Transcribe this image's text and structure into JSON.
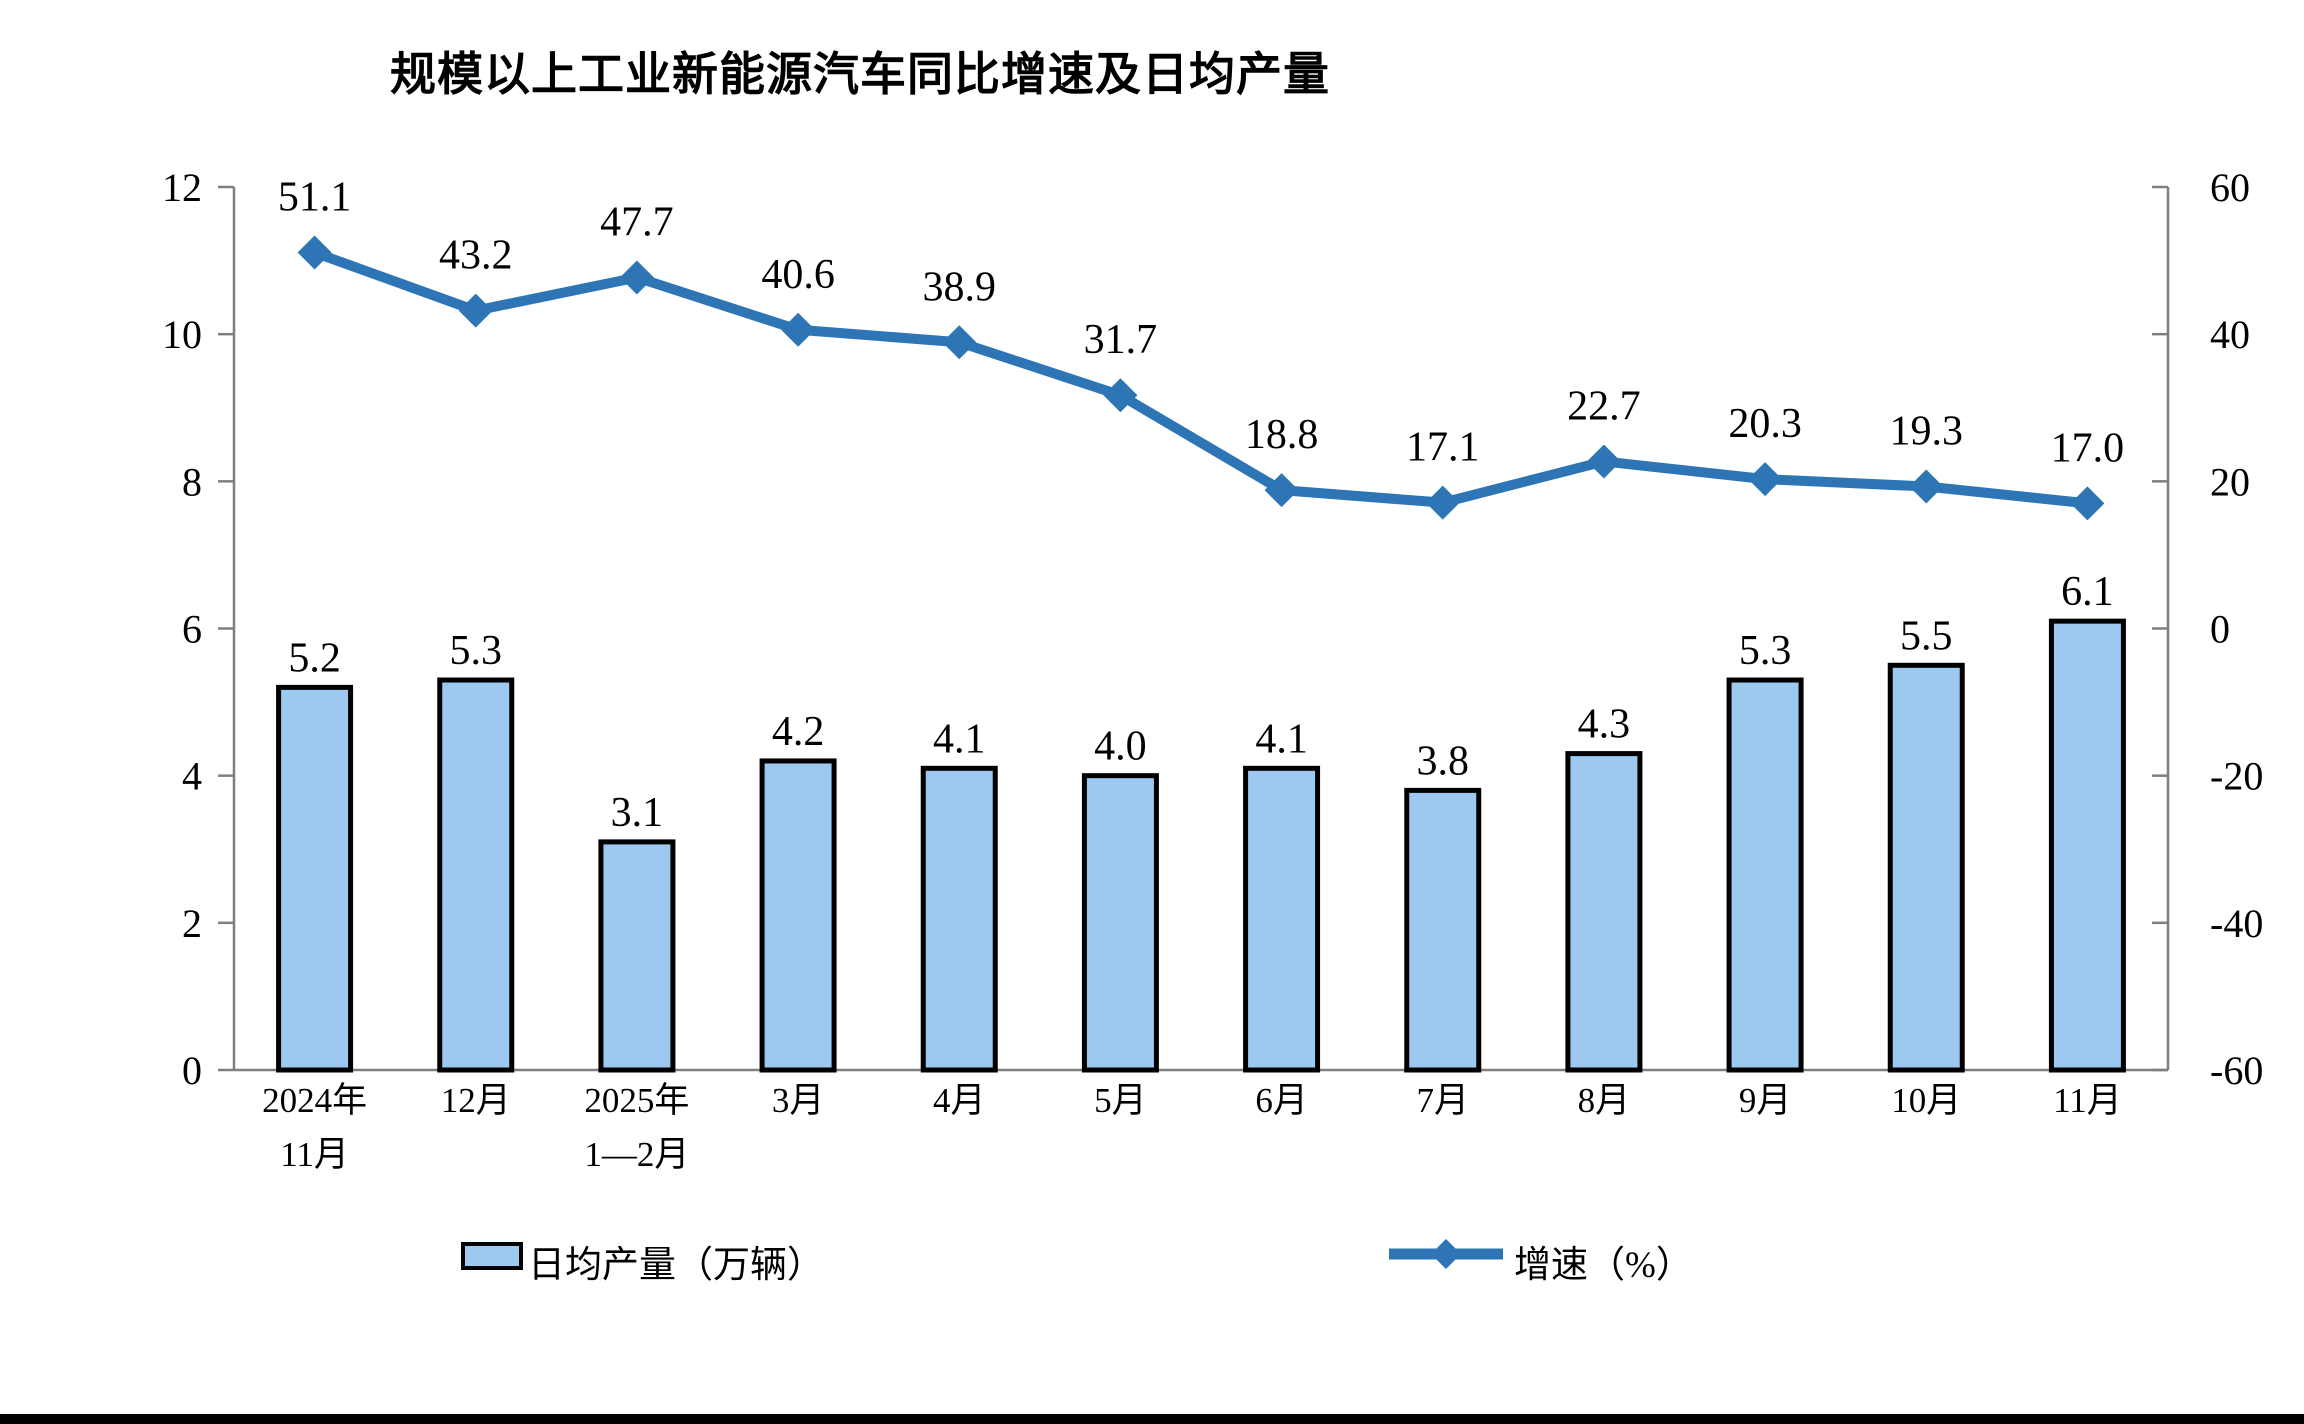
{
  "title": "规模以上工业新能源汽车同比增速及日均产量",
  "legend": {
    "bar_label": "日均产量（万辆）",
    "line_label": "增速（%）"
  },
  "colors": {
    "bar_fill": "#9DC9F0",
    "bar_border": "#000000",
    "line": "#2E75B6",
    "axis": "#7F7F7F",
    "text": "#000000"
  },
  "chart_data": {
    "type": "combo",
    "title": "规模以上工业新能源汽车同比增速及日均产量",
    "categories": [
      [
        "2024年",
        "11月"
      ],
      [
        "12月"
      ],
      [
        "2025年",
        "1—2月"
      ],
      [
        "3月"
      ],
      [
        "4月"
      ],
      [
        "5月"
      ],
      [
        "6月"
      ],
      [
        "7月"
      ],
      [
        "8月"
      ],
      [
        "9月"
      ],
      [
        "10月"
      ],
      [
        "11月"
      ]
    ],
    "series": [
      {
        "name": "日均产量（万辆）",
        "type": "bar",
        "axis": "left",
        "values": [
          5.2,
          5.3,
          3.1,
          4.2,
          4.1,
          4.0,
          4.1,
          3.8,
          4.3,
          5.3,
          5.5,
          6.1
        ]
      },
      {
        "name": "增速（%）",
        "type": "line",
        "axis": "right",
        "marker": "diamond",
        "values": [
          51.1,
          43.2,
          47.7,
          40.6,
          38.9,
          31.7,
          18.8,
          17.1,
          22.7,
          20.3,
          19.3,
          17.0
        ]
      }
    ],
    "left_axis": {
      "min": 0,
      "max": 12,
      "step": 2,
      "ticks": [
        0,
        2,
        4,
        6,
        8,
        10,
        12
      ]
    },
    "right_axis": {
      "min": -60,
      "max": 60,
      "step": 20,
      "ticks": [
        -60,
        -40,
        -20,
        0,
        20,
        40,
        60
      ]
    },
    "grid": false,
    "legend_position": "bottom",
    "value_label_decimals": 1
  }
}
